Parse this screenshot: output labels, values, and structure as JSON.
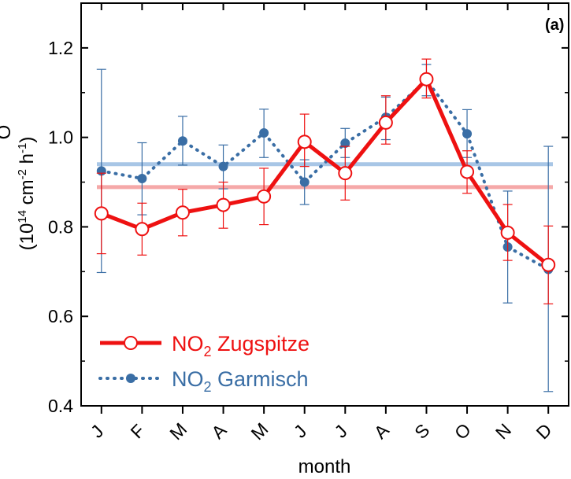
{
  "chart_data": {
    "type": "line",
    "panel_label": "(a)",
    "xlabel": "month",
    "ylabel": "(10¹⁴ cm⁻² h⁻¹)",
    "ylabel_partial": "O",
    "ylim": [
      0.4,
      1.3
    ],
    "yticks": [
      "0.4",
      "0.6",
      "0.8",
      "1.0",
      "1.2"
    ],
    "categories": [
      "J",
      "F",
      "M",
      "A",
      "M",
      "J",
      "J",
      "A",
      "S",
      "O",
      "N",
      "D"
    ],
    "series": [
      {
        "name": "NO₂ Zugspitze",
        "color": "#ee1111",
        "style": "solid",
        "marker": "open-circle",
        "values": [
          0.83,
          0.795,
          0.832,
          0.849,
          0.868,
          0.99,
          0.92,
          1.033,
          1.13,
          0.923,
          0.787,
          0.715
        ],
        "err_low": [
          0.74,
          0.737,
          0.78,
          0.797,
          0.805,
          0.935,
          0.86,
          0.985,
          1.088,
          0.875,
          0.725,
          0.628
        ],
        "err_high": [
          0.92,
          0.853,
          0.884,
          0.9,
          0.931,
          1.052,
          0.98,
          1.093,
          1.175,
          0.97,
          0.85,
          0.802
        ],
        "mean": 0.889
      },
      {
        "name": "NO₂ Garmisch",
        "color": "#3a6ea5",
        "style": "dotted",
        "marker": "filled-circle",
        "values": [
          0.925,
          0.908,
          0.992,
          0.935,
          1.01,
          0.9,
          0.987,
          1.045,
          1.128,
          1.008,
          0.755,
          0.705
        ],
        "err_low": [
          0.698,
          0.827,
          0.938,
          0.885,
          0.955,
          0.85,
          0.955,
          0.995,
          1.093,
          0.955,
          0.63,
          0.432
        ],
        "err_high": [
          1.152,
          0.988,
          1.047,
          0.983,
          1.063,
          0.95,
          1.02,
          1.09,
          1.163,
          1.062,
          0.88,
          0.98
        ],
        "mean": 0.94
      }
    ],
    "mean_line_colors": [
      "#f5a8a8",
      "#a8c6e6"
    ],
    "legend": {
      "position": "bottom-left",
      "entries": [
        {
          "prefix": "NO",
          "sub": "2",
          "suffix": " Zugspitze",
          "color": "#ee1111"
        },
        {
          "prefix": "NO",
          "sub": "2",
          "suffix": " Garmisch",
          "color": "#3a6ea5"
        }
      ]
    },
    "grid": false
  }
}
